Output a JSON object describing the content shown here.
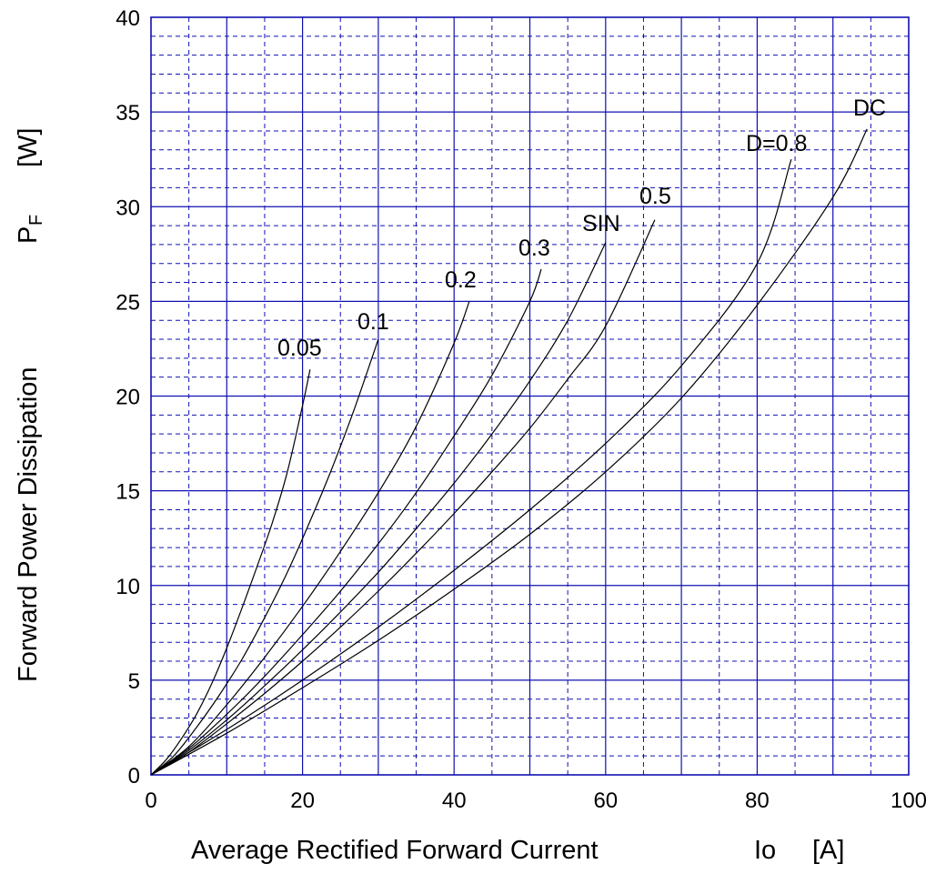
{
  "chart_data": {
    "type": "line",
    "xlabel": "Average Rectified Forward Current",
    "xlabel_symbol": "Io",
    "xlabel_unit": "[A]",
    "ylabel": "Forward Power Dissipation",
    "ylabel_symbol": "P",
    "ylabel_symbol_sub": "F",
    "ylabel_unit": "[W]",
    "xlim": [
      0,
      100
    ],
    "ylim": [
      0,
      40
    ],
    "x_ticks": [
      "0",
      "20",
      "40",
      "60",
      "80",
      "100"
    ],
    "y_ticks": [
      "0",
      "5",
      "10",
      "15",
      "20",
      "25",
      "30",
      "35",
      "40"
    ],
    "grid": "major solid every 10 A / 5 W, minor dashed every 5 A / 1 W",
    "series": [
      {
        "name": "0.05",
        "x": [
          0,
          2,
          4,
          6,
          8,
          10,
          12,
          14,
          16,
          18,
          20,
          21
        ],
        "y": [
          0,
          0.8,
          1.9,
          3.2,
          4.8,
          6.7,
          8.8,
          11.0,
          13.3,
          16.0,
          19.5,
          21.4
        ]
      },
      {
        "name": "0.1",
        "x": [
          0,
          3,
          6,
          9,
          12,
          15,
          18,
          21,
          24,
          27,
          30
        ],
        "y": [
          0,
          1.0,
          2.5,
          4.2,
          6.1,
          8.3,
          10.7,
          13.4,
          16.3,
          19.5,
          23.0
        ]
      },
      {
        "name": "0.2",
        "x": [
          0,
          5,
          10,
          15,
          20,
          25,
          30,
          35,
          40,
          42
        ],
        "y": [
          0,
          1.5,
          3.7,
          6.2,
          8.9,
          11.8,
          14.9,
          18.4,
          22.8,
          25.0
        ]
      },
      {
        "name": "0.3",
        "x": [
          0,
          5,
          10,
          15,
          20,
          25,
          30,
          35,
          40,
          45,
          50,
          51.5
        ],
        "y": [
          0,
          1.4,
          3.2,
          5.2,
          7.4,
          9.7,
          12.2,
          14.9,
          17.9,
          21.1,
          25.0,
          26.7
        ]
      },
      {
        "name": "SIN",
        "x": [
          0,
          5,
          10,
          15,
          20,
          25,
          30,
          35,
          40,
          45,
          50,
          55,
          60
        ],
        "y": [
          0,
          1.3,
          2.9,
          4.7,
          6.6,
          8.6,
          10.7,
          13.0,
          15.4,
          18.0,
          20.8,
          24.0,
          28.1
        ]
      },
      {
        "name": "0.5",
        "x": [
          0,
          5,
          10,
          15,
          20,
          25,
          30,
          35,
          40,
          45,
          50,
          55,
          60,
          66.5
        ],
        "y": [
          0,
          1.2,
          2.7,
          4.3,
          6.0,
          7.8,
          9.7,
          11.7,
          13.8,
          16.0,
          18.3,
          20.9,
          23.7,
          29.3
        ]
      },
      {
        "name": "D=0.8",
        "x": [
          0,
          10,
          20,
          30,
          40,
          50,
          60,
          70,
          80,
          84.5
        ],
        "y": [
          0,
          2.4,
          5.0,
          7.8,
          10.8,
          14.0,
          17.5,
          21.6,
          27.0,
          32.5
        ]
      },
      {
        "name": "DC",
        "x": [
          0,
          10,
          20,
          30,
          40,
          50,
          60,
          70,
          80,
          90,
          94.5
        ],
        "y": [
          0,
          2.2,
          4.6,
          7.1,
          9.8,
          12.7,
          16.0,
          19.9,
          24.8,
          30.5,
          34.1
        ]
      }
    ]
  }
}
